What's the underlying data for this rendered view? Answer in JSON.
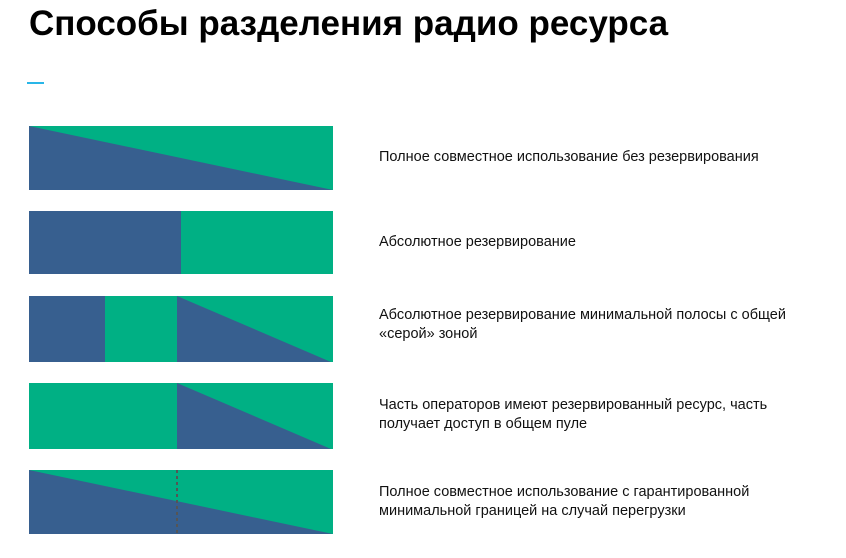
{
  "title": "Способы разделения радио ресурса",
  "colors": {
    "blue": "#375f8f",
    "green": "#00b084"
  },
  "schemes": [
    {
      "label": "Полное совместное использование без резервирования"
    },
    {
      "label": "Абсолютное резервирование"
    },
    {
      "label": "Абсолютное резервирование минимальной полосы с общей «серой» зоной"
    },
    {
      "label": "Часть операторов имеют резервированный ресурс, часть получает доступ в общем пуле"
    },
    {
      "label": "Полное совместное использование с гарантированной минимальной границей на случай перегрузки"
    }
  ]
}
